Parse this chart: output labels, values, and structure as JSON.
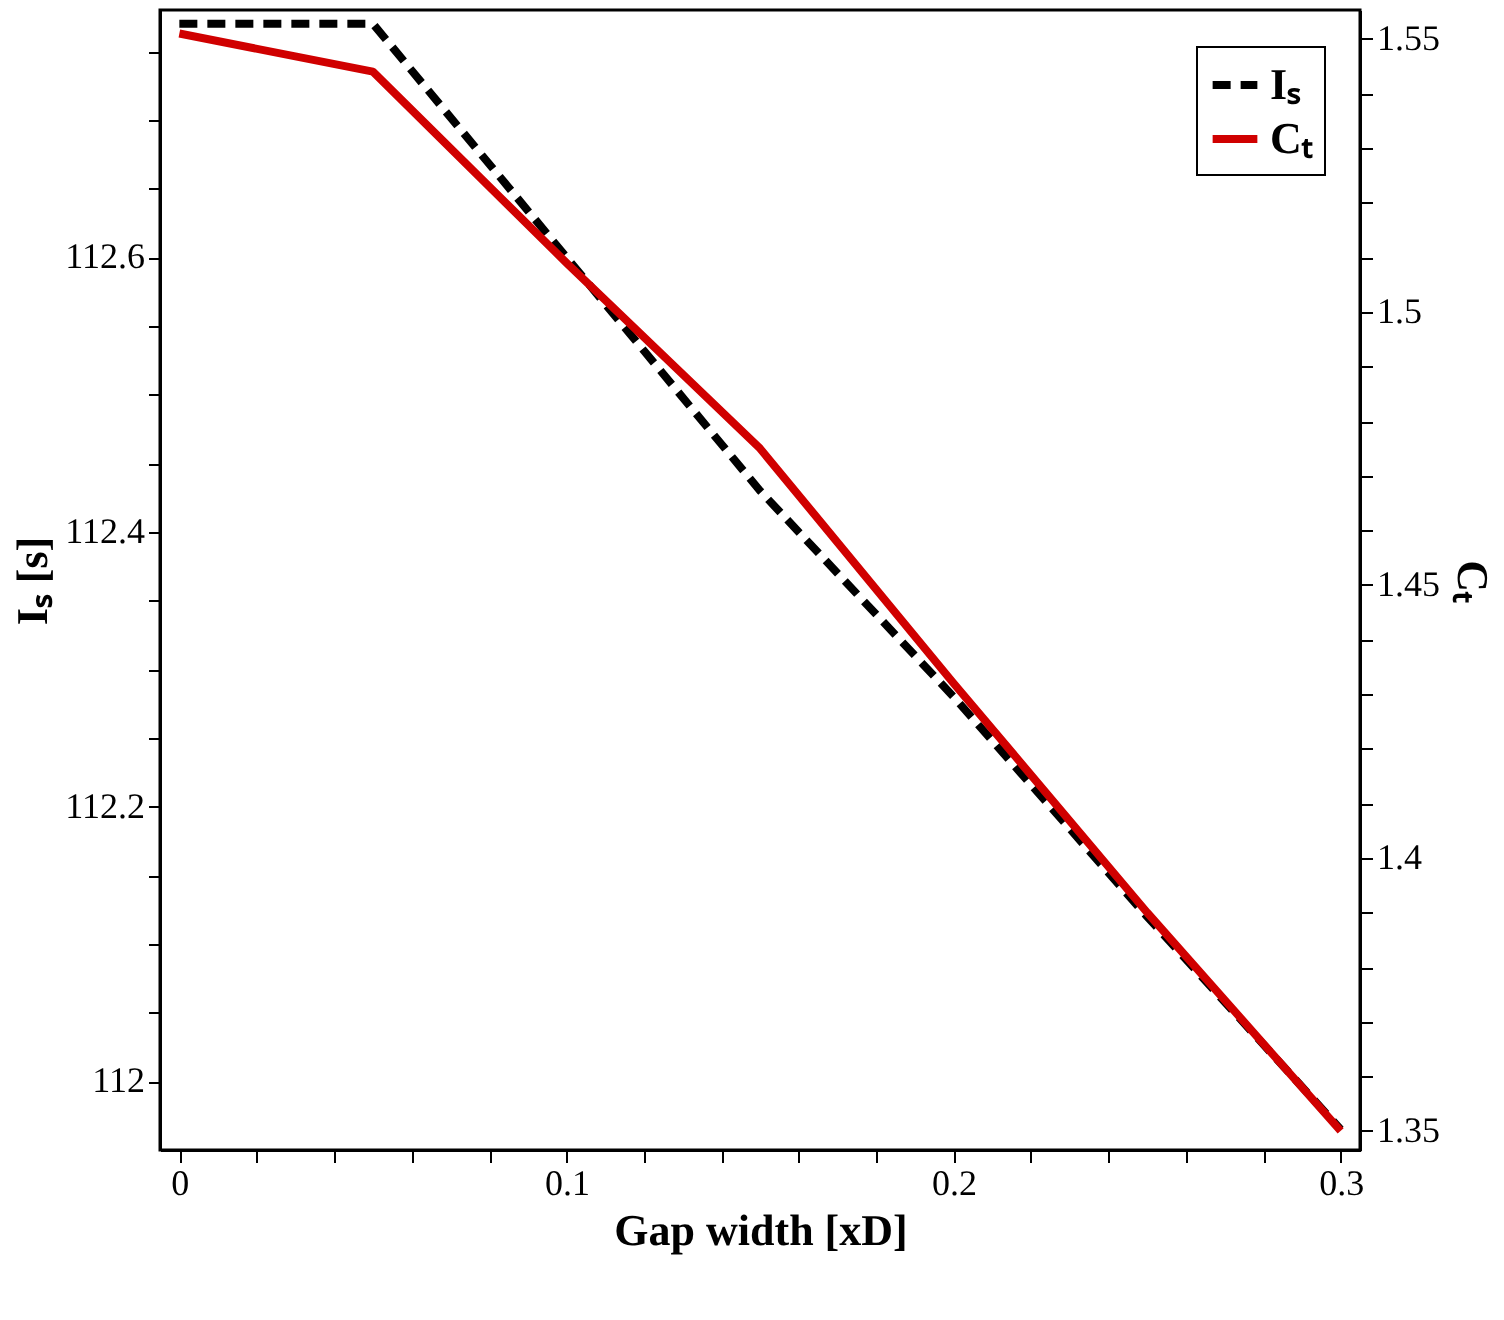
{
  "chart_data": {
    "type": "line",
    "xlabel": "Gap width [xD]",
    "ylabel": "Iₛ [s]",
    "y2label": "Cₜ",
    "x": [
      0,
      0.05,
      0.1,
      0.15,
      0.2,
      0.25,
      0.3
    ],
    "xlim": [
      -0.005,
      0.305
    ],
    "xticks": [
      0,
      {
        "value": 0.02,
        "label": null
      },
      {
        "value": 0.04,
        "label": null
      },
      {
        "value": 0.06,
        "label": null
      },
      {
        "value": 0.08,
        "label": null
      },
      0.1,
      {
        "value": 0.12,
        "label": null
      },
      {
        "value": 0.14,
        "label": null
      },
      {
        "value": 0.16,
        "label": null
      },
      {
        "value": 0.18,
        "label": null
      },
      0.2,
      {
        "value": 0.22,
        "label": null
      },
      {
        "value": 0.24,
        "label": null
      },
      {
        "value": 0.26,
        "label": null
      },
      {
        "value": 0.28,
        "label": null
      },
      0.3
    ],
    "ylim": [
      111.95,
      112.78
    ],
    "yticks": [
      112,
      {
        "value": 112.05,
        "label": null
      },
      {
        "value": 112.1,
        "label": null
      },
      {
        "value": 112.15,
        "label": null
      },
      112.2,
      {
        "value": 112.25,
        "label": null
      },
      {
        "value": 112.3,
        "label": null
      },
      {
        "value": 112.35,
        "label": null
      },
      112.4,
      {
        "value": 112.45,
        "label": null
      },
      {
        "value": 112.5,
        "label": null
      },
      {
        "value": 112.55,
        "label": null
      },
      112.6,
      {
        "value": 112.65,
        "label": null
      },
      {
        "value": 112.7,
        "label": null
      },
      {
        "value": 112.75,
        "label": null
      }
    ],
    "y2lim": [
      1.3465,
      1.5553
    ],
    "y2ticks": [
      1.35,
      {
        "value": 1.36,
        "label": null
      },
      {
        "value": 1.37,
        "label": null
      },
      {
        "value": 1.38,
        "label": null
      },
      {
        "value": 1.39,
        "label": null
      },
      1.4,
      {
        "value": 1.41,
        "label": null
      },
      {
        "value": 1.42,
        "label": null
      },
      {
        "value": 1.43,
        "label": null
      },
      {
        "value": 1.44,
        "label": null
      },
      1.45,
      {
        "value": 1.46,
        "label": null
      },
      {
        "value": 1.47,
        "label": null
      },
      {
        "value": 1.48,
        "label": null
      },
      {
        "value": 1.49,
        "label": null
      },
      1.5,
      {
        "value": 1.51,
        "label": null
      },
      {
        "value": 1.52,
        "label": null
      },
      {
        "value": 1.53,
        "label": null
      },
      {
        "value": 1.54,
        "label": null
      },
      1.55
    ],
    "series": [
      {
        "name": "Iₛ",
        "color": "#000000",
        "line_style": "dashed",
        "values": [
          112.77,
          112.77,
          112.6,
          112.43,
          112.28,
          112.12,
          111.965
        ]
      },
      {
        "name": "Cₜ",
        "color": "#d00000",
        "line_style": "solid",
        "axis": "y2",
        "values": [
          1.551,
          1.544,
          1.509,
          1.475,
          1.432,
          1.39,
          1.35
        ]
      }
    ],
    "grid": false,
    "legend": "top right",
    "marker": "none"
  }
}
